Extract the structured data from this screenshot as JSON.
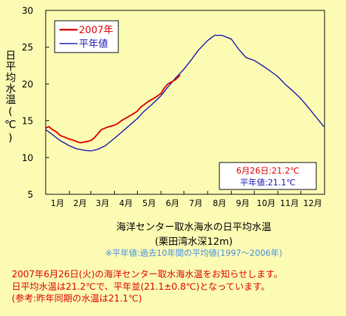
{
  "chart_data": {
    "type": "line",
    "title": "海洋センター取水海水の日平均水温",
    "subtitle": "(栗田湾水深12m)",
    "note": "※平年値:過去10年間の平均値(1997〜2006年)",
    "ylabel": "日平均水温(℃)",
    "xlabel": "",
    "ylim": [
      5,
      30
    ],
    "yticks": [
      5,
      10,
      15,
      20,
      25,
      30
    ],
    "categories": [
      "1月",
      "2月",
      "3月",
      "4月",
      "5月",
      "6月",
      "7月",
      "8月",
      "9月",
      "10月",
      "11月",
      "12月"
    ],
    "grid": false,
    "legend": "top-left",
    "series": [
      {
        "name": "2007年",
        "color": "#e00000",
        "x": [
          "1/1",
          "1/5",
          "1/10",
          "1/15",
          "1/20",
          "1/25",
          "2/1",
          "2/5",
          "2/10",
          "2/15",
          "2/20",
          "2/25",
          "3/1",
          "3/5",
          "3/10",
          "3/15",
          "3/20",
          "3/25",
          "4/1",
          "4/5",
          "4/10",
          "4/15",
          "4/20",
          "4/25",
          "5/1",
          "5/5",
          "5/10",
          "5/15",
          "5/20",
          "5/25",
          "6/1",
          "6/5",
          "6/10",
          "6/15",
          "6/20",
          "6/26"
        ],
        "values": [
          14.0,
          14.2,
          13.8,
          13.5,
          13.0,
          12.8,
          12.5,
          12.4,
          12.2,
          12.0,
          12.1,
          12.2,
          12.3,
          12.6,
          13.2,
          13.8,
          14.0,
          14.2,
          14.4,
          14.6,
          15.0,
          15.3,
          15.6,
          15.9,
          16.3,
          16.8,
          17.2,
          17.6,
          17.9,
          18.2,
          18.7,
          19.4,
          20.0,
          20.3,
          20.6,
          21.2
        ]
      },
      {
        "name": "平年値",
        "color": "#1a1ab0",
        "x": [
          "1/1",
          "1/10",
          "1/20",
          "2/1",
          "2/10",
          "2/20",
          "3/1",
          "3/10",
          "3/20",
          "4/1",
          "4/10",
          "4/20",
          "5/1",
          "5/10",
          "5/20",
          "6/1",
          "6/10",
          "6/20",
          "7/1",
          "7/10",
          "7/20",
          "8/1",
          "8/10",
          "8/20",
          "9/1",
          "9/10",
          "9/20",
          "10/1",
          "10/10",
          "10/20",
          "11/1",
          "11/10",
          "11/20",
          "12/1",
          "12/10",
          "12/20",
          "12/31"
        ],
        "values": [
          13.8,
          13.1,
          12.3,
          11.6,
          11.2,
          11.0,
          10.9,
          11.1,
          11.6,
          12.6,
          13.4,
          14.3,
          15.3,
          16.3,
          17.2,
          18.4,
          19.6,
          20.8,
          22.0,
          23.2,
          24.6,
          25.9,
          26.6,
          26.6,
          26.1,
          24.8,
          23.6,
          23.2,
          22.6,
          21.9,
          21.0,
          20.0,
          19.1,
          18.0,
          16.9,
          15.6,
          14.2
        ]
      }
    ]
  },
  "info_box": {
    "line1": "6月26日:21.2℃",
    "line2": "平年値:21.1℃"
  },
  "info_text": {
    "line1": "2007年6月26日(火)の海洋センター取水海水温をお知らせします。",
    "line2": "日平均水温は21.2℃で、平年並(21.1±0.8℃)となっています。",
    "line3": "(参考:昨年同期の水温は21.1℃)"
  }
}
